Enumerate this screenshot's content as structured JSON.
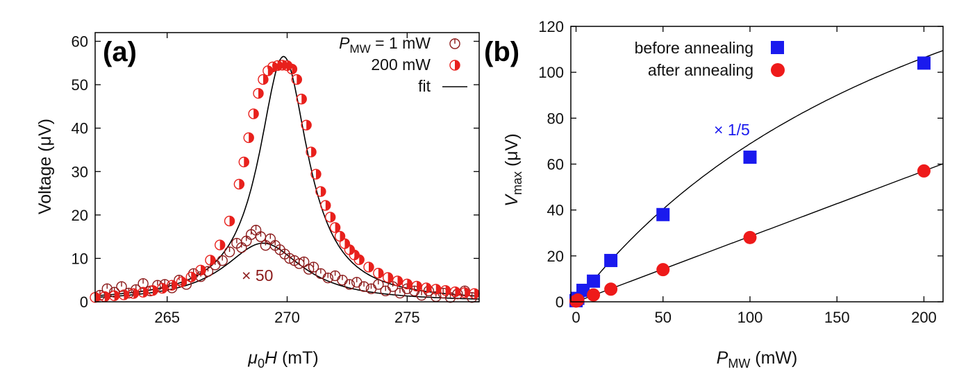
{
  "chart_data": [
    {
      "type": "scatter",
      "panel_label": "(a)",
      "xlabel_sym": "μ",
      "xlabel_sub": "0",
      "xlabel_var": "H",
      "xlabel_unit": " (mT)",
      "ylabel": "Voltage (μV)",
      "xlim": [
        262,
        278
      ],
      "ylim": [
        0,
        62
      ],
      "xticks": [
        265,
        270,
        275
      ],
      "yticks": [
        0,
        10,
        20,
        30,
        40,
        50,
        60
      ],
      "legend": {
        "p_label": "P",
        "p_sub": "MW",
        "first_value": " = 1 mW",
        "second_value": "200 mW",
        "fit_label": "fit"
      },
      "annotation": "× 50",
      "series": [
        {
          "name": "1 mW (×50)",
          "color": "#8b1a1a",
          "marker": "open-circle-with-tick",
          "x": [
            262.2,
            262.5,
            262.8,
            263.1,
            263.4,
            263.7,
            264.0,
            264.3,
            264.6,
            264.9,
            265.2,
            265.5,
            265.8,
            266.1,
            266.4,
            266.7,
            267.0,
            267.3,
            267.6,
            267.9,
            268.1,
            268.3,
            268.5,
            268.7,
            268.9,
            269.1,
            269.3,
            269.5,
            269.7,
            269.9,
            270.1,
            270.3,
            270.5,
            270.7,
            270.9,
            271.1,
            271.4,
            271.7,
            272.0,
            272.3,
            272.6,
            272.9,
            273.2,
            273.5,
            273.8,
            274.1,
            274.4,
            274.7,
            275.0,
            275.3,
            275.6,
            275.9,
            276.2,
            276.5,
            276.8,
            277.1,
            277.4,
            277.7
          ],
          "y": [
            1.5,
            3.0,
            2.2,
            3.5,
            2.0,
            2.8,
            4.2,
            2.5,
            3.8,
            4.0,
            3.2,
            5.0,
            4.0,
            6.5,
            5.8,
            7.0,
            8.5,
            9.5,
            11.5,
            13.5,
            12.5,
            14.0,
            15.5,
            16.5,
            15.0,
            13.0,
            14.5,
            13.0,
            12.0,
            11.0,
            10.0,
            9.5,
            8.8,
            9.2,
            7.5,
            8.0,
            6.5,
            5.5,
            6.0,
            5.0,
            4.0,
            4.5,
            3.5,
            3.0,
            4.0,
            2.5,
            3.5,
            2.0,
            3.0,
            2.5,
            1.5,
            2.5,
            1.2,
            2.0,
            1.0,
            1.8,
            2.5,
            1.0
          ]
        },
        {
          "name": "200 mW",
          "color": "#e8201c",
          "marker": "half-filled-circle",
          "x": [
            262.0,
            262.4,
            262.8,
            263.2,
            263.6,
            264.0,
            264.4,
            264.8,
            265.2,
            265.6,
            266.0,
            266.4,
            266.8,
            267.2,
            267.6,
            268.0,
            268.2,
            268.4,
            268.6,
            268.8,
            269.0,
            269.2,
            269.4,
            269.6,
            269.8,
            270.0,
            270.2,
            270.4,
            270.6,
            270.8,
            271.0,
            271.2,
            271.4,
            271.6,
            271.8,
            272.0,
            272.2,
            272.4,
            272.6,
            272.8,
            273.0,
            273.4,
            273.8,
            274.2,
            274.6,
            275.0,
            275.4,
            275.8,
            276.2,
            276.6,
            277.0,
            277.4,
            277.8
          ],
          "y": [
            1.0,
            1.2,
            1.4,
            1.6,
            1.9,
            2.2,
            2.6,
            3.1,
            3.8,
            4.6,
            5.7,
            7.3,
            9.6,
            13.1,
            18.6,
            27.1,
            32.2,
            37.8,
            43.3,
            48.0,
            51.2,
            53.2,
            54.1,
            54.4,
            54.5,
            54.4,
            53.6,
            51.2,
            46.7,
            40.7,
            34.5,
            29.4,
            25.4,
            22.2,
            19.5,
            17.1,
            15.1,
            13.4,
            12.0,
            10.8,
            9.7,
            8.0,
            6.6,
            5.6,
            4.8,
            4.1,
            3.6,
            3.2,
            2.9,
            2.6,
            2.3,
            2.1,
            1.9
          ]
        }
      ],
      "fits": [
        {
          "name": "fit 200 mW",
          "center": 269.85,
          "gamma": 1.25,
          "amp": 56.5,
          "color": "#000000"
        },
        {
          "name": "fit 1 mW ×50",
          "center": 269.0,
          "gamma": 2.0,
          "amp": 13.5,
          "color": "#000000"
        }
      ]
    },
    {
      "type": "scatter",
      "panel_label": "(b)",
      "xlabel_var": "P",
      "xlabel_sub": "MW",
      "xlabel_unit": " (mW)",
      "ylabel_var": "V",
      "ylabel_sub": "max",
      "ylabel_unit": " (μV)",
      "xlim": [
        -3,
        211
      ],
      "ylim": [
        0,
        120
      ],
      "xticks": [
        0,
        50,
        100,
        150,
        200
      ],
      "yticks": [
        0,
        20,
        40,
        60,
        80,
        100,
        120
      ],
      "annotation": "× 1/5",
      "series": [
        {
          "name": "before annealing",
          "color": "#1a1aee",
          "marker": "filled-square",
          "x": [
            0,
            1,
            4,
            10,
            20,
            50,
            100,
            200
          ],
          "y": [
            0.5,
            1.5,
            5,
            9,
            18,
            38,
            63,
            104
          ]
        },
        {
          "name": "after annealing",
          "color": "#ee1a1a",
          "marker": "filled-circle",
          "x": [
            0,
            1,
            10,
            20,
            50,
            100,
            200
          ],
          "y": [
            0.3,
            0.8,
            3,
            5.5,
            14,
            28,
            57
          ]
        }
      ],
      "fits": [
        {
          "name": "fit before",
          "type": "saturation",
          "a": 234,
          "ps": 240,
          "color": "#000000"
        },
        {
          "name": "fit after",
          "type": "linear",
          "slope": 0.285,
          "color": "#000000"
        }
      ]
    }
  ]
}
